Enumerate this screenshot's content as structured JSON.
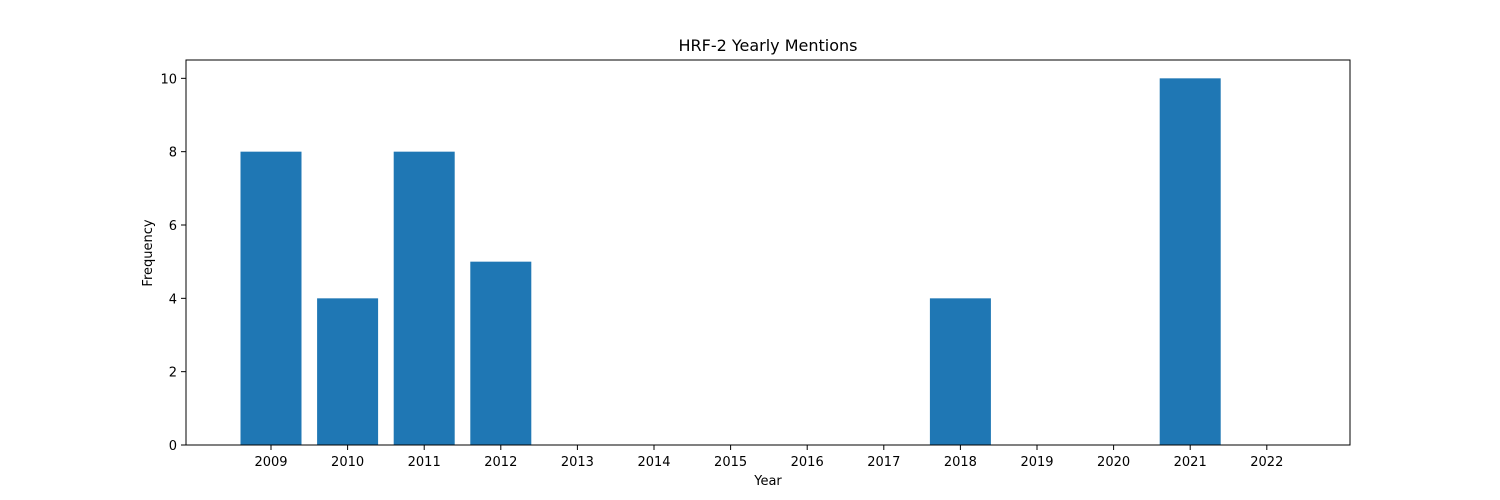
{
  "chart_data": {
    "type": "bar",
    "title": "HRF-2 Yearly Mentions",
    "xlabel": "Year",
    "ylabel": "Frequency",
    "categories": [
      "2009",
      "2010",
      "2011",
      "2012",
      "2013",
      "2014",
      "2015",
      "2016",
      "2017",
      "2018",
      "2019",
      "2020",
      "2021",
      "2022"
    ],
    "values": [
      8,
      4,
      8,
      5,
      0,
      0,
      0,
      0,
      0,
      4,
      0,
      0,
      10,
      0
    ],
    "ylim": [
      0,
      10.5
    ],
    "yticks": [
      0,
      2,
      4,
      6,
      8,
      10
    ],
    "bar_color": "#1f77b4",
    "grid": false,
    "legend": "none"
  }
}
